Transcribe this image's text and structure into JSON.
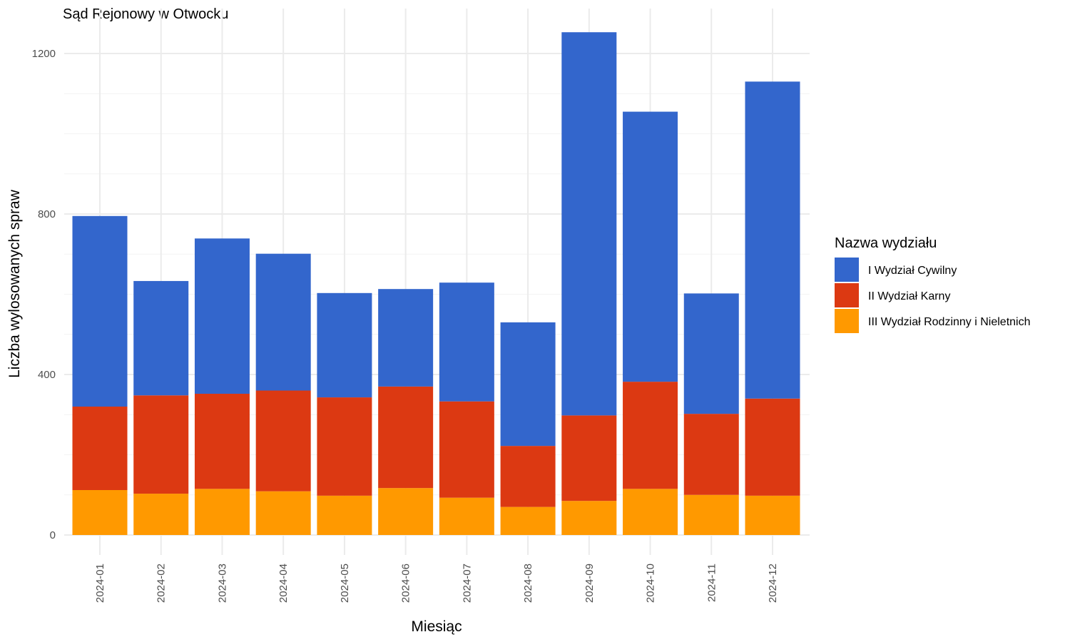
{
  "chart_data": {
    "type": "bar",
    "stacked": true,
    "title": "Sąd Rejonowy w Otwocku",
    "xlabel": "Miesiąc",
    "ylabel": "Liczba wylosowanych spraw",
    "ylim": [
      0,
      1260
    ],
    "yticks": [
      0,
      400,
      800,
      1200
    ],
    "grid": true,
    "legend_title": "Nazwa wydziału",
    "legend_position": "right",
    "categories": [
      "2024-01",
      "2024-02",
      "2024-03",
      "2024-04",
      "2024-05",
      "2024-06",
      "2024-07",
      "2024-08",
      "2024-09",
      "2024-10",
      "2024-11",
      "2024-12"
    ],
    "series": [
      {
        "name": "III Wydział Rodzinny i Nieletnich",
        "color": "#ff9900",
        "values": [
          112,
          103,
          115,
          109,
          98,
          117,
          93,
          70,
          85,
          115,
          100,
          98
        ]
      },
      {
        "name": "II Wydział Karny",
        "color": "#dc3912",
        "values": [
          208,
          245,
          237,
          251,
          245,
          253,
          240,
          152,
          213,
          267,
          202,
          242
        ]
      },
      {
        "name": "I Wydział Cywilny",
        "color": "#3366cc",
        "values": [
          475,
          285,
          387,
          341,
          260,
          243,
          296,
          308,
          955,
          673,
          300,
          790
        ]
      }
    ],
    "legend_order": [
      "I Wydział Cywilny",
      "II Wydział Karny",
      "III Wydział Rodzinny i Nieletnich"
    ]
  }
}
